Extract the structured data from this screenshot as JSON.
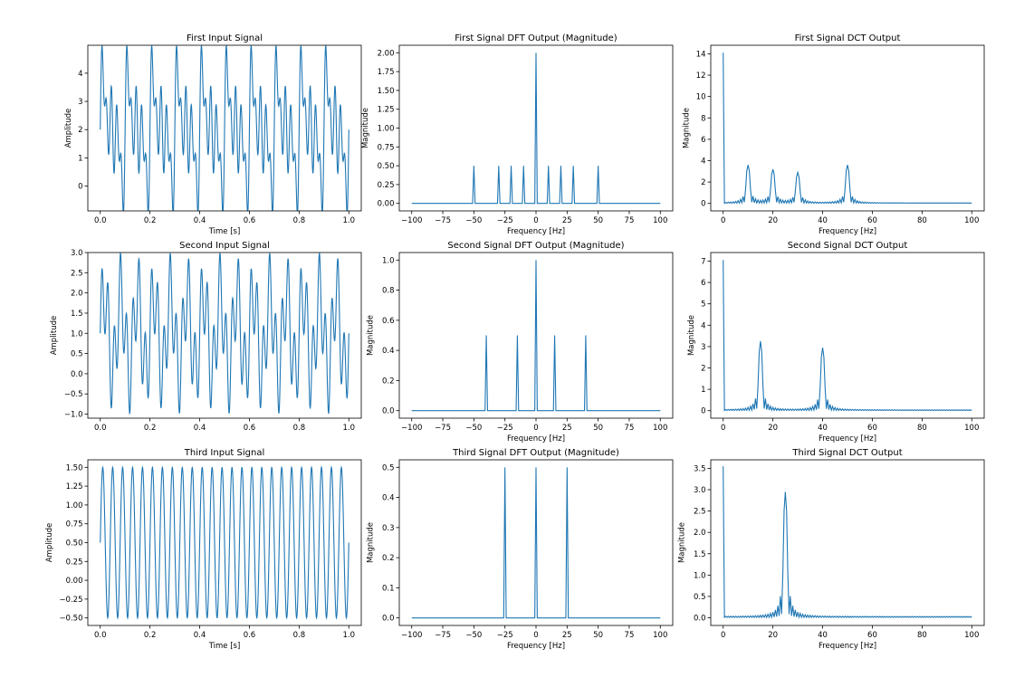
{
  "figure": {
    "line_color": "#1f77b4"
  },
  "chart_data": [
    {
      "type": "line",
      "title": "First Input Signal",
      "xlabel": "Time [s]",
      "ylabel": "Amplitude",
      "xlim": [
        -0.05,
        1.05
      ],
      "ylim": [
        -0.88,
        4.99
      ],
      "xticks": [
        0.0,
        0.2,
        0.4,
        0.6,
        0.8,
        1.0
      ],
      "xtick_labels": [
        "0.0",
        "0.2",
        "0.4",
        "0.6",
        "0.8",
        "1.0"
      ],
      "yticks": [
        0,
        1,
        2,
        3,
        4
      ],
      "ytick_labels": [
        "0",
        "1",
        "2",
        "3",
        "4"
      ],
      "grid": false,
      "signal": {
        "x_range": [
          0,
          1
        ],
        "samples": 1000,
        "components": [
          {
            "kind": "offset",
            "value": 2
          },
          {
            "kind": "sin",
            "freq_hz": 10,
            "amplitude": 1
          },
          {
            "kind": "sin",
            "freq_hz": 20,
            "amplitude": 1
          },
          {
            "kind": "sin",
            "freq_hz": 30,
            "amplitude": 1
          },
          {
            "kind": "sin",
            "freq_hz": 50,
            "amplitude": 1
          }
        ]
      }
    },
    {
      "type": "line",
      "title": "First Signal DFT Output (Magnitude)",
      "xlabel": "Frequency [Hz]",
      "ylabel": "Magnitude",
      "xlim": [
        -110,
        110
      ],
      "ylim": [
        -0.1,
        2.1
      ],
      "xticks": [
        -100,
        -75,
        -50,
        -25,
        0,
        25,
        50,
        75,
        100
      ],
      "xtick_labels": [
        "−100",
        "−75",
        "−50",
        "−25",
        "0",
        "25",
        "50",
        "75",
        "100"
      ],
      "yticks": [
        0,
        0.25,
        0.5,
        0.75,
        1.0,
        1.25,
        1.5,
        1.75,
        2.0
      ],
      "ytick_labels": [
        "0.00",
        "0.25",
        "0.50",
        "0.75",
        "1.00",
        "1.25",
        "1.50",
        "1.75",
        "2.00"
      ],
      "grid": false,
      "spectrum": {
        "x_range": [
          -100,
          100
        ],
        "step": 1,
        "peaks": [
          [
            -50,
            0.5
          ],
          [
            -30,
            0.5
          ],
          [
            -20,
            0.5
          ],
          [
            -10,
            0.5
          ],
          [
            0,
            2.0
          ],
          [
            10,
            0.5
          ],
          [
            20,
            0.5
          ],
          [
            30,
            0.5
          ],
          [
            50,
            0.5
          ]
        ]
      }
    },
    {
      "type": "line",
      "title": "First Signal DCT Output",
      "xlabel": "Frequency [Hz]",
      "ylabel": "Magnitude",
      "xlim": [
        -5,
        105
      ],
      "ylim": [
        -0.7,
        14.8
      ],
      "xticks": [
        0,
        20,
        40,
        60,
        80,
        100
      ],
      "xtick_labels": [
        "0",
        "20",
        "40",
        "60",
        "80",
        "100"
      ],
      "yticks": [
        0,
        2,
        4,
        6,
        8,
        10,
        12,
        14
      ],
      "ytick_labels": [
        "0",
        "2",
        "4",
        "6",
        "8",
        "10",
        "12",
        "14"
      ],
      "grid": false,
      "dct": {
        "x_range": [
          0,
          100
        ],
        "step": 0.5,
        "dc": 14.1,
        "floor": 0.05,
        "peaks": [
          [
            10,
            3.6
          ],
          [
            20,
            3.2
          ],
          [
            30,
            2.9
          ],
          [
            50,
            3.6
          ]
        ]
      }
    },
    {
      "type": "line",
      "title": "Second Input Signal",
      "xlabel": "",
      "ylabel": "Amplitude",
      "xlim": [
        -0.05,
        1.05
      ],
      "ylim": [
        -1.1,
        3.0
      ],
      "xticks": [
        0.0,
        0.2,
        0.4,
        0.6,
        0.8,
        1.0
      ],
      "xtick_labels": [
        "0.0",
        "0.2",
        "0.4",
        "0.6",
        "0.8",
        "1.0"
      ],
      "yticks": [
        -1.0,
        -0.5,
        0.0,
        0.5,
        1.0,
        1.5,
        2.0,
        2.5,
        3.0
      ],
      "ytick_labels": [
        "−1.0",
        "−0.5",
        "0.0",
        "0.5",
        "1.0",
        "1.5",
        "2.0",
        "2.5",
        "3.0"
      ],
      "grid": false,
      "signal": {
        "x_range": [
          0,
          1
        ],
        "samples": 1000,
        "components": [
          {
            "kind": "offset",
            "value": 1
          },
          {
            "kind": "sin",
            "freq_hz": 15,
            "amplitude": 1
          },
          {
            "kind": "sin",
            "freq_hz": 40,
            "amplitude": 1
          }
        ]
      }
    },
    {
      "type": "line",
      "title": "Second Signal DFT Output (Magnitude)",
      "xlabel": "Frequency [Hz]",
      "ylabel": "Magnitude",
      "xlim": [
        -110,
        110
      ],
      "ylim": [
        -0.05,
        1.05
      ],
      "xticks": [
        -100,
        -75,
        -50,
        -25,
        0,
        25,
        50,
        75,
        100
      ],
      "xtick_labels": [
        "−100",
        "−75",
        "−50",
        "−25",
        "0",
        "25",
        "50",
        "75",
        "100"
      ],
      "yticks": [
        0,
        0.2,
        0.4,
        0.6,
        0.8,
        1.0
      ],
      "ytick_labels": [
        "0.0",
        "0.2",
        "0.4",
        "0.6",
        "0.8",
        "1.0"
      ],
      "grid": false,
      "spectrum": {
        "x_range": [
          -100,
          100
        ],
        "step": 1,
        "peaks": [
          [
            -40,
            0.5
          ],
          [
            -15,
            0.5
          ],
          [
            0,
            1.0
          ],
          [
            15,
            0.5
          ],
          [
            40,
            0.5
          ]
        ]
      }
    },
    {
      "type": "line",
      "title": "Second Signal DCT Output",
      "xlabel": "Frequency [Hz]",
      "ylabel": "Magnitude",
      "xlim": [
        -5,
        105
      ],
      "ylim": [
        -0.35,
        7.4
      ],
      "xticks": [
        0,
        20,
        40,
        60,
        80,
        100
      ],
      "xtick_labels": [
        "0",
        "20",
        "40",
        "60",
        "80",
        "100"
      ],
      "yticks": [
        0,
        1,
        2,
        3,
        4,
        5,
        6,
        7
      ],
      "ytick_labels": [
        "0",
        "1",
        "2",
        "3",
        "4",
        "5",
        "6",
        "7"
      ],
      "grid": false,
      "dct": {
        "x_range": [
          0,
          100
        ],
        "step": 0.5,
        "dc": 7.05,
        "floor": 0.04,
        "peaks": [
          [
            15,
            3.25
          ],
          [
            40,
            2.95
          ]
        ]
      }
    },
    {
      "type": "line",
      "title": "Third Input Signal",
      "xlabel": "Time [s]",
      "ylabel": "Amplitude",
      "xlim": [
        -0.05,
        1.05
      ],
      "ylim": [
        -0.6,
        1.6
      ],
      "xticks": [
        0.0,
        0.2,
        0.4,
        0.6,
        0.8,
        1.0
      ],
      "xtick_labels": [
        "0.0",
        "0.2",
        "0.4",
        "0.6",
        "0.8",
        "1.0"
      ],
      "yticks": [
        -0.5,
        -0.25,
        0.0,
        0.25,
        0.5,
        0.75,
        1.0,
        1.25,
        1.5
      ],
      "ytick_labels": [
        "−0.50",
        "−0.25",
        "0.00",
        "0.25",
        "0.50",
        "0.75",
        "1.00",
        "1.25",
        "1.50"
      ],
      "grid": false,
      "signal": {
        "x_range": [
          0,
          1
        ],
        "samples": 1000,
        "components": [
          {
            "kind": "offset",
            "value": 0.5
          },
          {
            "kind": "sin",
            "freq_hz": 25,
            "amplitude": 1
          }
        ]
      }
    },
    {
      "type": "line",
      "title": "Third Signal DFT Output (Magnitude)",
      "xlabel": "Frequency [Hz]",
      "ylabel": "Magnitude",
      "xlim": [
        -110,
        110
      ],
      "ylim": [
        -0.025,
        0.525
      ],
      "xticks": [
        -100,
        -75,
        -50,
        -25,
        0,
        25,
        50,
        75,
        100
      ],
      "xtick_labels": [
        "−100",
        "−75",
        "−50",
        "−25",
        "0",
        "25",
        "50",
        "75",
        "100"
      ],
      "yticks": [
        0,
        0.1,
        0.2,
        0.3,
        0.4,
        0.5
      ],
      "ytick_labels": [
        "0.0",
        "0.1",
        "0.2",
        "0.3",
        "0.4",
        "0.5"
      ],
      "grid": false,
      "spectrum": {
        "x_range": [
          -100,
          100
        ],
        "step": 1,
        "peaks": [
          [
            -25,
            0.5
          ],
          [
            0,
            0.5
          ],
          [
            25,
            0.5
          ]
        ]
      }
    },
    {
      "type": "line",
      "title": "Third Signal DCT Output",
      "xlabel": "Frequency [Hz]",
      "ylabel": "Magnitude",
      "xlim": [
        -5,
        105
      ],
      "ylim": [
        -0.18,
        3.7
      ],
      "xticks": [
        0,
        20,
        40,
        60,
        80,
        100
      ],
      "xtick_labels": [
        "0",
        "20",
        "40",
        "60",
        "80",
        "100"
      ],
      "yticks": [
        0,
        0.5,
        1.0,
        1.5,
        2.0,
        2.5,
        3.0,
        3.5
      ],
      "ytick_labels": [
        "0.0",
        "0.5",
        "1.0",
        "1.5",
        "2.0",
        "2.5",
        "3.0",
        "3.5"
      ],
      "grid": false,
      "dct": {
        "x_range": [
          0,
          100
        ],
        "step": 0.5,
        "dc": 3.55,
        "floor": 0.03,
        "peaks": [
          [
            25,
            2.95
          ]
        ]
      }
    }
  ]
}
